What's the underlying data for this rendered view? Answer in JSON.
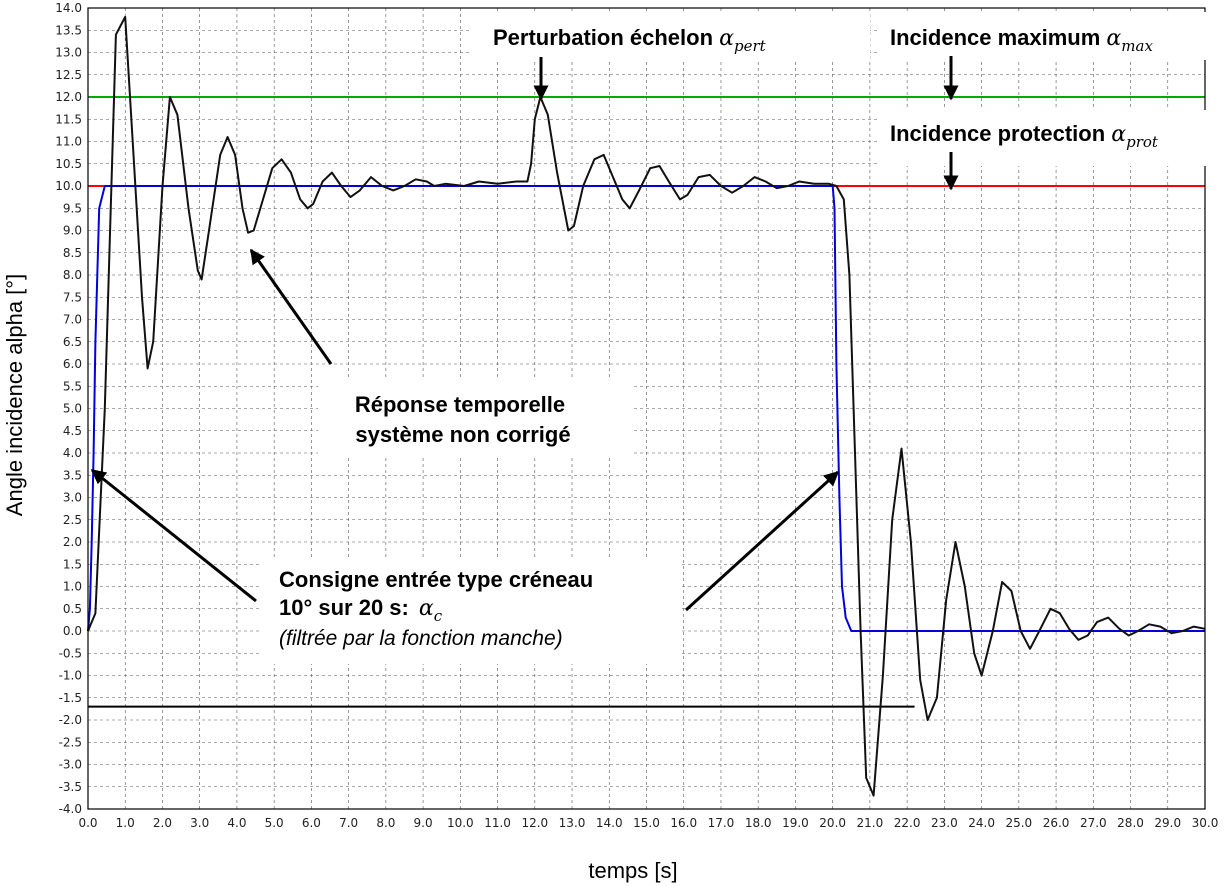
{
  "chart_data": {
    "type": "line",
    "xlabel": "temps [s]",
    "ylabel": "Angle incidence alpha [°]",
    "xlim": [
      0,
      30
    ],
    "ylim": [
      -4,
      14
    ],
    "grid": true,
    "x_ticks": [
      "0.0",
      "1.0",
      "2.0",
      "3.0",
      "4.0",
      "5.0",
      "6.0",
      "7.0",
      "8.0",
      "9.0",
      "10.0",
      "11.0",
      "12.0",
      "13.0",
      "14.0",
      "15.0",
      "16.0",
      "17.0",
      "18.0",
      "19.0",
      "20.0",
      "21.0",
      "22.0",
      "23.0",
      "24.0",
      "25.0",
      "26.0",
      "27.0",
      "28.0",
      "29.0",
      "30.0"
    ],
    "y_ticks": [
      "-4.0",
      "-3.5",
      "-3.0",
      "-2.5",
      "-2.0",
      "-1.5",
      "-1.0",
      "-0.5",
      "0.0",
      "0.5",
      "1.0",
      "1.5",
      "2.0",
      "2.5",
      "3.0",
      "3.5",
      "4.0",
      "4.5",
      "5.0",
      "5.5",
      "6.0",
      "6.5",
      "7.0",
      "7.5",
      "8.0",
      "8.5",
      "9.0",
      "9.5",
      "10.0",
      "10.5",
      "11.0",
      "11.5",
      "12.0",
      "12.5",
      "13.0",
      "13.5",
      "14.0"
    ],
    "series": [
      {
        "color": "#0000dd",
        "points": [
          [
            0,
            0
          ],
          [
            0.05,
            0.5
          ],
          [
            0.1,
            2
          ],
          [
            0.15,
            4
          ],
          [
            0.2,
            6.5
          ],
          [
            0.3,
            9.5
          ],
          [
            0.45,
            10
          ],
          [
            20,
            10
          ],
          [
            20.05,
            9.5
          ],
          [
            20.1,
            6
          ],
          [
            20.18,
            3
          ],
          [
            20.25,
            1
          ],
          [
            20.35,
            0.3
          ],
          [
            20.5,
            0
          ],
          [
            30,
            0
          ]
        ]
      },
      {
        "color": "#111111",
        "points": [
          [
            0,
            0
          ],
          [
            0.2,
            0.4
          ],
          [
            0.45,
            5
          ],
          [
            0.75,
            13.4
          ],
          [
            1.0,
            13.8
          ],
          [
            1.2,
            11
          ],
          [
            1.45,
            7.5
          ],
          [
            1.6,
            5.9
          ],
          [
            1.75,
            6.5
          ],
          [
            2.0,
            10
          ],
          [
            2.2,
            12.0
          ],
          [
            2.4,
            11.6
          ],
          [
            2.7,
            9.5
          ],
          [
            2.95,
            8.1
          ],
          [
            3.05,
            7.9
          ],
          [
            3.25,
            9
          ],
          [
            3.55,
            10.7
          ],
          [
            3.75,
            11.1
          ],
          [
            3.95,
            10.7
          ],
          [
            4.15,
            9.5
          ],
          [
            4.3,
            8.95
          ],
          [
            4.45,
            9.0
          ],
          [
            4.7,
            9.7
          ],
          [
            4.95,
            10.4
          ],
          [
            5.2,
            10.6
          ],
          [
            5.45,
            10.3
          ],
          [
            5.7,
            9.7
          ],
          [
            5.9,
            9.5
          ],
          [
            6.05,
            9.6
          ],
          [
            6.3,
            10.1
          ],
          [
            6.55,
            10.3
          ],
          [
            6.8,
            10.0
          ],
          [
            7.05,
            9.75
          ],
          [
            7.3,
            9.9
          ],
          [
            7.6,
            10.2
          ],
          [
            7.9,
            10.0
          ],
          [
            8.2,
            9.9
          ],
          [
            8.5,
            10.0
          ],
          [
            8.8,
            10.15
          ],
          [
            9.1,
            10.1
          ],
          [
            9.3,
            10.0
          ],
          [
            9.6,
            10.05
          ],
          [
            10.1,
            10.0
          ],
          [
            10.5,
            10.1
          ],
          [
            11.0,
            10.05
          ],
          [
            11.5,
            10.1
          ],
          [
            11.8,
            10.1
          ],
          [
            11.9,
            10.5
          ],
          [
            12.0,
            11.5
          ],
          [
            12.15,
            12.0
          ],
          [
            12.35,
            11.6
          ],
          [
            12.6,
            10.3
          ],
          [
            12.9,
            9.0
          ],
          [
            13.05,
            9.1
          ],
          [
            13.3,
            10.0
          ],
          [
            13.6,
            10.6
          ],
          [
            13.85,
            10.7
          ],
          [
            14.1,
            10.2
          ],
          [
            14.35,
            9.7
          ],
          [
            14.55,
            9.5
          ],
          [
            14.8,
            9.9
          ],
          [
            15.1,
            10.4
          ],
          [
            15.35,
            10.45
          ],
          [
            15.6,
            10.1
          ],
          [
            15.9,
            9.7
          ],
          [
            16.1,
            9.8
          ],
          [
            16.4,
            10.2
          ],
          [
            16.7,
            10.25
          ],
          [
            17.0,
            10.0
          ],
          [
            17.3,
            9.85
          ],
          [
            17.6,
            10.0
          ],
          [
            17.9,
            10.2
          ],
          [
            18.2,
            10.1
          ],
          [
            18.5,
            9.95
          ],
          [
            18.8,
            10.0
          ],
          [
            19.1,
            10.1
          ],
          [
            19.5,
            10.05
          ],
          [
            19.9,
            10.05
          ],
          [
            20.1,
            10.0
          ],
          [
            20.3,
            9.7
          ],
          [
            20.45,
            8
          ],
          [
            20.6,
            4
          ],
          [
            20.75,
            0
          ],
          [
            20.9,
            -3.3
          ],
          [
            21.1,
            -3.7
          ],
          [
            21.35,
            -1
          ],
          [
            21.6,
            2.5
          ],
          [
            21.85,
            4.1
          ],
          [
            22.1,
            2
          ],
          [
            22.35,
            -1.1
          ],
          [
            22.55,
            -2.0
          ],
          [
            22.8,
            -1.5
          ],
          [
            23.05,
            0.7
          ],
          [
            23.3,
            2.0
          ],
          [
            23.55,
            1.0
          ],
          [
            23.8,
            -0.5
          ],
          [
            24.0,
            -1.0
          ],
          [
            24.3,
            0
          ],
          [
            24.55,
            1.1
          ],
          [
            24.8,
            0.9
          ],
          [
            25.05,
            0
          ],
          [
            25.3,
            -0.4
          ],
          [
            25.55,
            0
          ],
          [
            25.85,
            0.5
          ],
          [
            26.1,
            0.4
          ],
          [
            26.35,
            0.05
          ],
          [
            26.6,
            -0.2
          ],
          [
            26.85,
            -0.1
          ],
          [
            27.1,
            0.2
          ],
          [
            27.4,
            0.3
          ],
          [
            27.7,
            0.05
          ],
          [
            27.95,
            -0.1
          ],
          [
            28.2,
            0
          ],
          [
            28.5,
            0.15
          ],
          [
            28.8,
            0.1
          ],
          [
            29.1,
            -0.05
          ],
          [
            29.4,
            0
          ],
          [
            29.7,
            0.1
          ],
          [
            30.0,
            0.05
          ]
        ]
      }
    ],
    "reference_lines": [
      {
        "y": 12,
        "color": "#00aa00"
      },
      {
        "y": 10,
        "color": "#ff0000"
      },
      {
        "y": -1.7,
        "x_end": 22.2,
        "color": "#000000"
      }
    ]
  },
  "annotations": {
    "pert_text": "Perturbation échelon ",
    "pert_math": "α",
    "pert_sub": "pert",
    "max_text": "Incidence maximum ",
    "max_math": "α",
    "max_sub": "max",
    "prot_text": "Incidence protection ",
    "prot_math": "α",
    "prot_sub": "prot",
    "reponse_line1": "Réponse temporelle",
    "reponse_line2": "système non corrigé",
    "consigne_line1": "Consigne entrée type créneau",
    "consigne_line2": "10° sur 20 s",
    "consigne_sep": ":",
    "consigne_math": "α",
    "consigne_sub": "c",
    "consigne_line3": "(filtrée par la fonction manche)"
  }
}
